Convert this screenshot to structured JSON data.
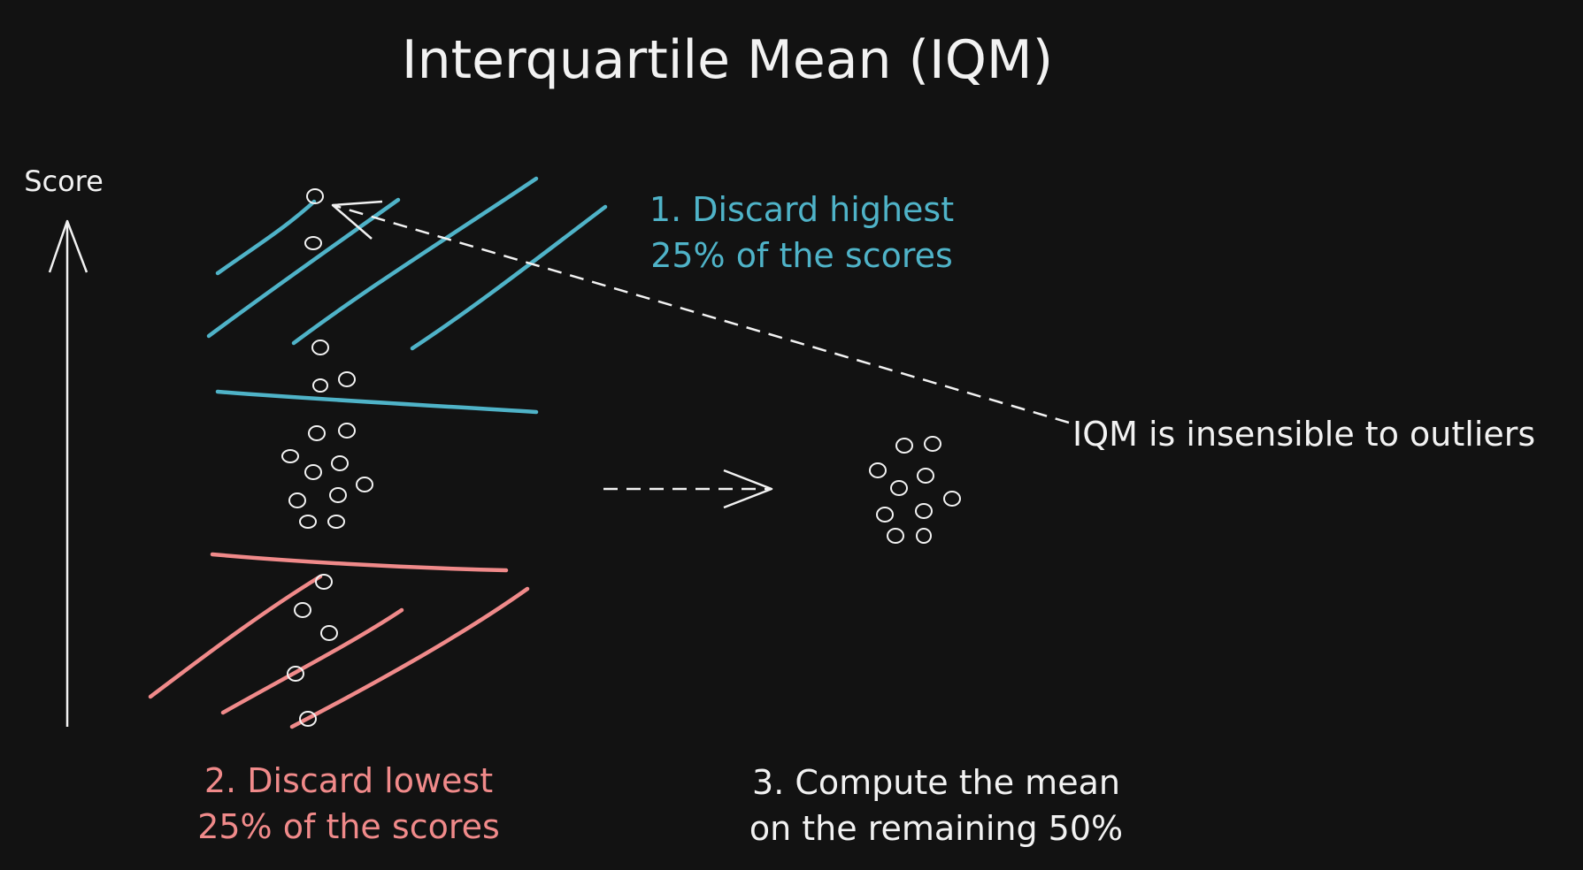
{
  "diagram": {
    "title": "Interquartile Mean (IQM)",
    "axis_label": "Score",
    "step1": {
      "line1": "1. Discard highest",
      "line2": "25% of the scores",
      "color": "#4fb3c8"
    },
    "step2": {
      "line1": "2. Discard lowest",
      "line2": "25% of the scores",
      "color": "#f08a8a"
    },
    "step3": {
      "line1": "3. Compute the mean",
      "line2": "on the remaining 50%",
      "color": "#f2f2f2"
    },
    "outlier_note": "IQM is insensible to outliers",
    "colors": {
      "background": "#121212",
      "ink": "#f2f2f2",
      "top_hatch": "#4fb3c8",
      "bottom_hatch": "#f08a8a"
    }
  }
}
